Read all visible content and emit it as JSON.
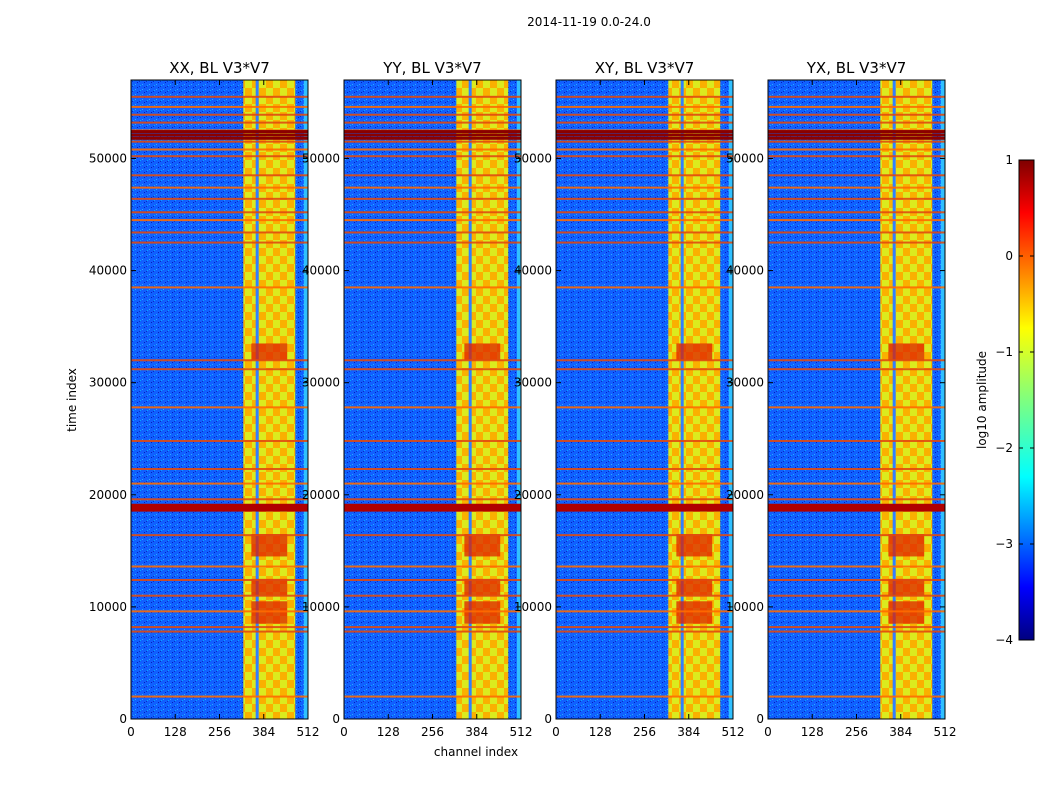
{
  "chart_data": {
    "type": "heatmap",
    "suptitle": "2014-11-19 0.0-24.0",
    "xlabel": "channel index",
    "ylabel": "time index",
    "x_range": [
      0,
      512
    ],
    "y_range": [
      0,
      57000
    ],
    "x_ticks": [
      0,
      128,
      256,
      384,
      512
    ],
    "x_tick_labels": [
      "0",
      "128",
      "256",
      "384",
      "512"
    ],
    "y_ticks": [
      0,
      10000,
      20000,
      30000,
      40000,
      50000
    ],
    "y_tick_labels": [
      "0",
      "10000",
      "20000",
      "30000",
      "40000",
      "50000"
    ],
    "panels": [
      {
        "title": "XX, BL V3*V7"
      },
      {
        "title": "YY, BL V3*V7"
      },
      {
        "title": "XY, BL V3*V7"
      },
      {
        "title": "YX, BL V3*V7"
      }
    ],
    "colorbar": {
      "label": "log10 amplitude",
      "range": [
        -4,
        1
      ],
      "ticks": [
        -4,
        -3,
        -2,
        -1,
        0,
        1
      ],
      "tick_labels": [
        "−4",
        "−3",
        "−2",
        "−1",
        "0",
        "1"
      ],
      "colormap": "jet"
    },
    "features": {
      "band_channels": [
        325,
        475
      ],
      "edge_channels": [
        500,
        512
      ],
      "mid_stripe_channel": 365,
      "bright_blocks": [
        [
          8500,
          10500
        ],
        [
          11000,
          12500
        ],
        [
          14500,
          16500
        ],
        [
          32000,
          33500
        ]
      ],
      "strong_rfi_time": [
        18500,
        19200
      ],
      "rfi_lines": [
        2000,
        7800,
        8200,
        9600,
        11000,
        12400,
        13600,
        16400,
        19600,
        21000,
        22300,
        24800,
        27800,
        31200,
        32000,
        38500,
        42500,
        43400,
        44500,
        45200,
        46400,
        47400,
        48500,
        50200,
        50800,
        51500,
        52100,
        52500,
        53200,
        53900,
        54600,
        55500
      ]
    }
  }
}
